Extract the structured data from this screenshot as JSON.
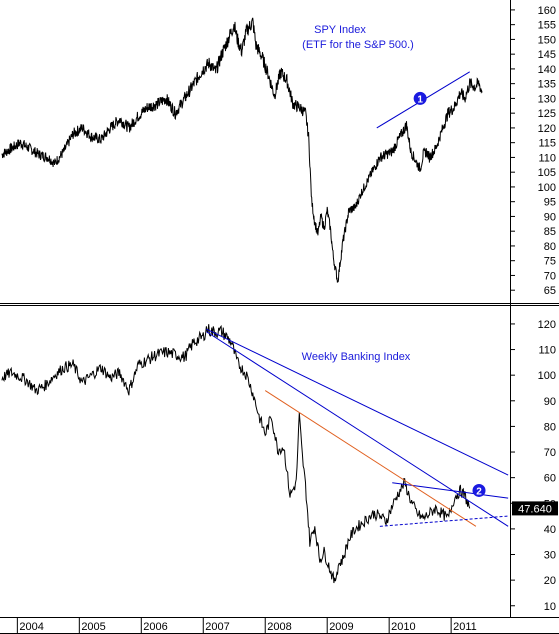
{
  "chart_data": [
    {
      "type": "line",
      "title": "SPY Index",
      "subtitle": "(ETF for the S&P 500.)",
      "frequency": "daily",
      "line_color": "#000000",
      "y_ticks": [
        65,
        70,
        75,
        80,
        85,
        90,
        95,
        100,
        105,
        110,
        115,
        120,
        125,
        130,
        135,
        140,
        145,
        150,
        155,
        160
      ],
      "ylim": [
        61,
        162
      ],
      "series": [
        {
          "x": [
            2003.75,
            2003.9,
            2004.05,
            2004.2,
            2004.35,
            2004.5,
            2004.6,
            2004.75,
            2004.9,
            2005.05,
            2005.2,
            2005.35,
            2005.5,
            2005.65,
            2005.8,
            2005.95,
            2006.1,
            2006.25,
            2006.4,
            2006.55,
            2006.7,
            2006.85,
            2007.0,
            2007.1,
            2007.2,
            2007.3,
            2007.4,
            2007.5,
            2007.55,
            2007.62,
            2007.7,
            2007.8,
            2007.85,
            2007.95,
            2008.05,
            2008.15,
            2008.25,
            2008.35,
            2008.45,
            2008.55,
            2008.65,
            2008.7,
            2008.75,
            2008.8,
            2008.85,
            2008.9,
            2008.95,
            2009.0,
            2009.05,
            2009.1,
            2009.17,
            2009.25,
            2009.35,
            2009.45,
            2009.55,
            2009.65,
            2009.75,
            2009.85,
            2009.95,
            2010.05,
            2010.15,
            2010.28,
            2010.35,
            2010.45,
            2010.5,
            2010.55,
            2010.6,
            2010.65,
            2010.75,
            2010.85,
            2010.95,
            2011.05,
            2011.15,
            2011.22,
            2011.3,
            2011.38,
            2011.45,
            2011.5
          ],
          "y": [
            111,
            113,
            115,
            113,
            111,
            110,
            108,
            112,
            118,
            120,
            117,
            116,
            120,
            123,
            120,
            124,
            127,
            128,
            130,
            125,
            130,
            135,
            140,
            142,
            139,
            145,
            150,
            155,
            150,
            146,
            153,
            156,
            148,
            144,
            138,
            131,
            139,
            136,
            128,
            127,
            125,
            117,
            95,
            88,
            84,
            90,
            86,
            92,
            86,
            76,
            68,
            81,
            92,
            93,
            98,
            102,
            106,
            110,
            111,
            112,
            116,
            121,
            112,
            108,
            106,
            111,
            112,
            110,
            113,
            119,
            125,
            127,
            132,
            130,
            135,
            134,
            135,
            132
          ]
        }
      ]
    },
    {
      "type": "line",
      "title": "Weekly Banking Index",
      "frequency": "weekly",
      "line_color": "#000000",
      "y_ticks": [
        10,
        20,
        30,
        40,
        50,
        60,
        70,
        80,
        90,
        100,
        110,
        120
      ],
      "ylim": [
        6,
        127
      ],
      "last_value_label": "47.640",
      "x_tick_labels": [
        "2004",
        "2005",
        "2006",
        "2007",
        "2008",
        "2009",
        "2010",
        "2011"
      ],
      "x_tick_values": [
        2004,
        2005,
        2006,
        2007,
        2008,
        2009,
        2010,
        2011
      ],
      "xlim": [
        2003.72,
        2011.95
      ],
      "series": [
        {
          "x": [
            2003.75,
            2003.9,
            2004.0,
            2004.15,
            2004.3,
            2004.45,
            2004.6,
            2004.75,
            2004.9,
            2005.05,
            2005.2,
            2005.35,
            2005.5,
            2005.65,
            2005.8,
            2005.95,
            2006.1,
            2006.25,
            2006.4,
            2006.55,
            2006.7,
            2006.85,
            2007.0,
            2007.05,
            2007.15,
            2007.3,
            2007.45,
            2007.55,
            2007.7,
            2007.8,
            2007.9,
            2008.0,
            2008.1,
            2008.2,
            2008.3,
            2008.4,
            2008.5,
            2008.55,
            2008.6,
            2008.65,
            2008.72,
            2008.8,
            2008.88,
            2008.95,
            2009.05,
            2009.12,
            2009.18,
            2009.25,
            2009.35,
            2009.45,
            2009.55,
            2009.65,
            2009.75,
            2009.85,
            2009.95,
            2010.05,
            2010.15,
            2010.25,
            2010.35,
            2010.45,
            2010.55,
            2010.65,
            2010.75,
            2010.85,
            2010.95,
            2011.05,
            2011.15,
            2011.22,
            2011.3
          ],
          "y": [
            99,
            101,
            100,
            98,
            94,
            96,
            100,
            103,
            104,
            97,
            100,
            103,
            99,
            101,
            94,
            104,
            106,
            108,
            109,
            108,
            107,
            113,
            115,
            118,
            117,
            117,
            113,
            105,
            100,
            93,
            84,
            77,
            84,
            71,
            72,
            53,
            58,
            84,
            68,
            57,
            35,
            41,
            28,
            31,
            24,
            19,
            26,
            28,
            36,
            40,
            42,
            44,
            46,
            45,
            43,
            49,
            54,
            58,
            51,
            46,
            44,
            46,
            48,
            46,
            44,
            52,
            55,
            53,
            48
          ]
        }
      ],
      "trendlines": [
        {
          "color": "#0000cc",
          "style": "solid",
          "x": [
            2007.05,
            2011.92
          ],
          "y": [
            118,
            61
          ]
        },
        {
          "color": "#0000cc",
          "style": "solid",
          "x": [
            2007.05,
            2011.92
          ],
          "y": [
            117,
            41
          ]
        },
        {
          "color": "#0000cc",
          "style": "solid",
          "x": [
            2010.05,
            2011.92
          ],
          "y": [
            58,
            52
          ]
        },
        {
          "color": "#e06020",
          "style": "solid",
          "x": [
            2008.0,
            2011.4
          ],
          "y": [
            94,
            41
          ]
        },
        {
          "color": "#0000cc",
          "style": "dashed",
          "x": [
            2009.85,
            2011.92
          ],
          "y": [
            41,
            45
          ]
        }
      ],
      "annotations": [
        {
          "text": "2",
          "x": 2011.45,
          "y": 55,
          "style": "marker"
        }
      ]
    }
  ],
  "top_panel_annotations": [
    {
      "text": "1",
      "x": 2010.5,
      "y": 130,
      "style": "marker"
    }
  ],
  "top_trendline": {
    "color": "#0000cc",
    "x": [
      2009.8,
      2011.3
    ],
    "y": [
      120,
      139
    ]
  }
}
